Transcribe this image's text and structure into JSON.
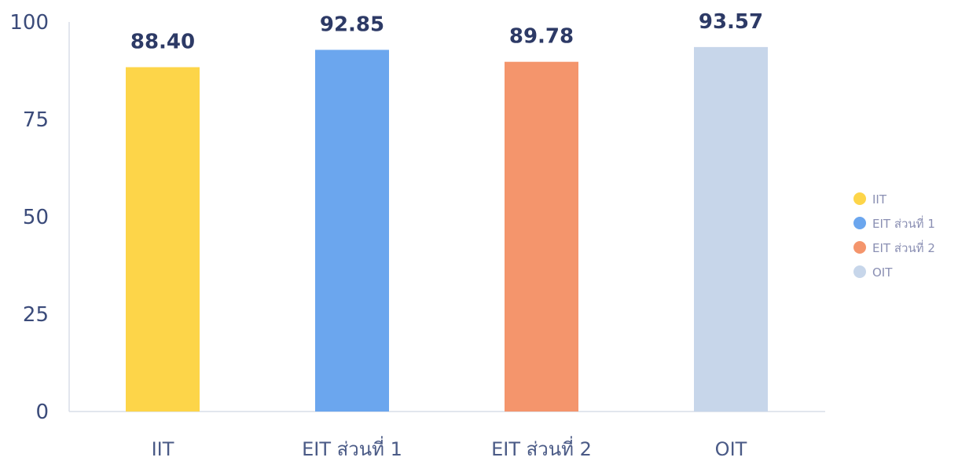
{
  "chart_data": {
    "type": "bar",
    "categories": [
      "IIT",
      "EIT ส่วนที่ 1",
      "EIT ส่วนที่ 2",
      "OIT"
    ],
    "values": [
      88.4,
      92.85,
      89.78,
      93.57
    ],
    "value_labels": [
      "88.40",
      "92.85",
      "89.78",
      "93.57"
    ],
    "colors": [
      "#fdd549",
      "#6ba6ee",
      "#f4956c",
      "#c7d6ea"
    ],
    "ylim": [
      0,
      100
    ],
    "yticks": [
      0,
      25,
      50,
      75,
      100
    ],
    "ytick_labels": [
      "0",
      "25",
      "50",
      "75",
      "100"
    ],
    "grid": false,
    "legend": {
      "placement": "right",
      "entries": [
        "IIT",
        "EIT ส่วนที่ 1",
        "EIT ส่วนที่ 2",
        "OIT"
      ]
    }
  }
}
